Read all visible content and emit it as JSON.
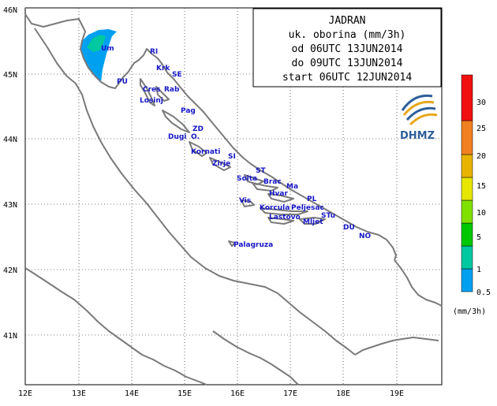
{
  "title_box": {
    "lines": [
      "JADRAN",
      "uk. oborina (mm/3h)",
      "od 06UTC 13JUN2014",
      "do 09UTC 13JUN2014",
      "start 06UTC 12JUN2014"
    ]
  },
  "axes": {
    "lat_labels": [
      "46N",
      "45N",
      "44N",
      "43N",
      "42N",
      "41N"
    ],
    "lon_labels": [
      "12E",
      "13E",
      "14E",
      "15E",
      "16E",
      "17E",
      "18E",
      "19E"
    ]
  },
  "places": [
    {
      "name": "Um"
    },
    {
      "name": "RI"
    },
    {
      "name": "Krk"
    },
    {
      "name": "SE"
    },
    {
      "name": "PU"
    },
    {
      "name": "Cres"
    },
    {
      "name": "Rab"
    },
    {
      "name": "Losinj"
    },
    {
      "name": "Pag"
    },
    {
      "name": "ZD"
    },
    {
      "name": "Dugi"
    },
    {
      "name": "O."
    },
    {
      "name": "Kornati"
    },
    {
      "name": "SI"
    },
    {
      "name": "Zirje"
    },
    {
      "name": "ST"
    },
    {
      "name": "Solta"
    },
    {
      "name": "Brac"
    },
    {
      "name": "Ma"
    },
    {
      "name": "Hvar"
    },
    {
      "name": "PL"
    },
    {
      "name": "Vis"
    },
    {
      "name": "Korcula"
    },
    {
      "name": "Peljesac"
    },
    {
      "name": "Lastovo"
    },
    {
      "name": "STu"
    },
    {
      "name": "Mljet"
    },
    {
      "name": "DU"
    },
    {
      "name": "NO"
    },
    {
      "name": "Palagruza"
    }
  ],
  "precip_scale": {
    "unit": "(mm/3h)",
    "levels": [
      "0.5",
      "1",
      "5",
      "10",
      "15",
      "20",
      "25",
      "30"
    ],
    "colors": [
      "#00a0f0",
      "#00c8a0",
      "#00c800",
      "#80e000",
      "#e6e600",
      "#e8b400",
      "#f08020",
      "#f01010"
    ]
  },
  "precip_areas": [
    {
      "region": "Istria north",
      "level_mm": 0.5,
      "color": "#00a0f0"
    },
    {
      "region": "Istria north inner",
      "level_mm": 1,
      "color": "#00c8a0"
    }
  ],
  "logo": {
    "text": "DHMZ",
    "icon": "dhmz-logo-icon"
  }
}
